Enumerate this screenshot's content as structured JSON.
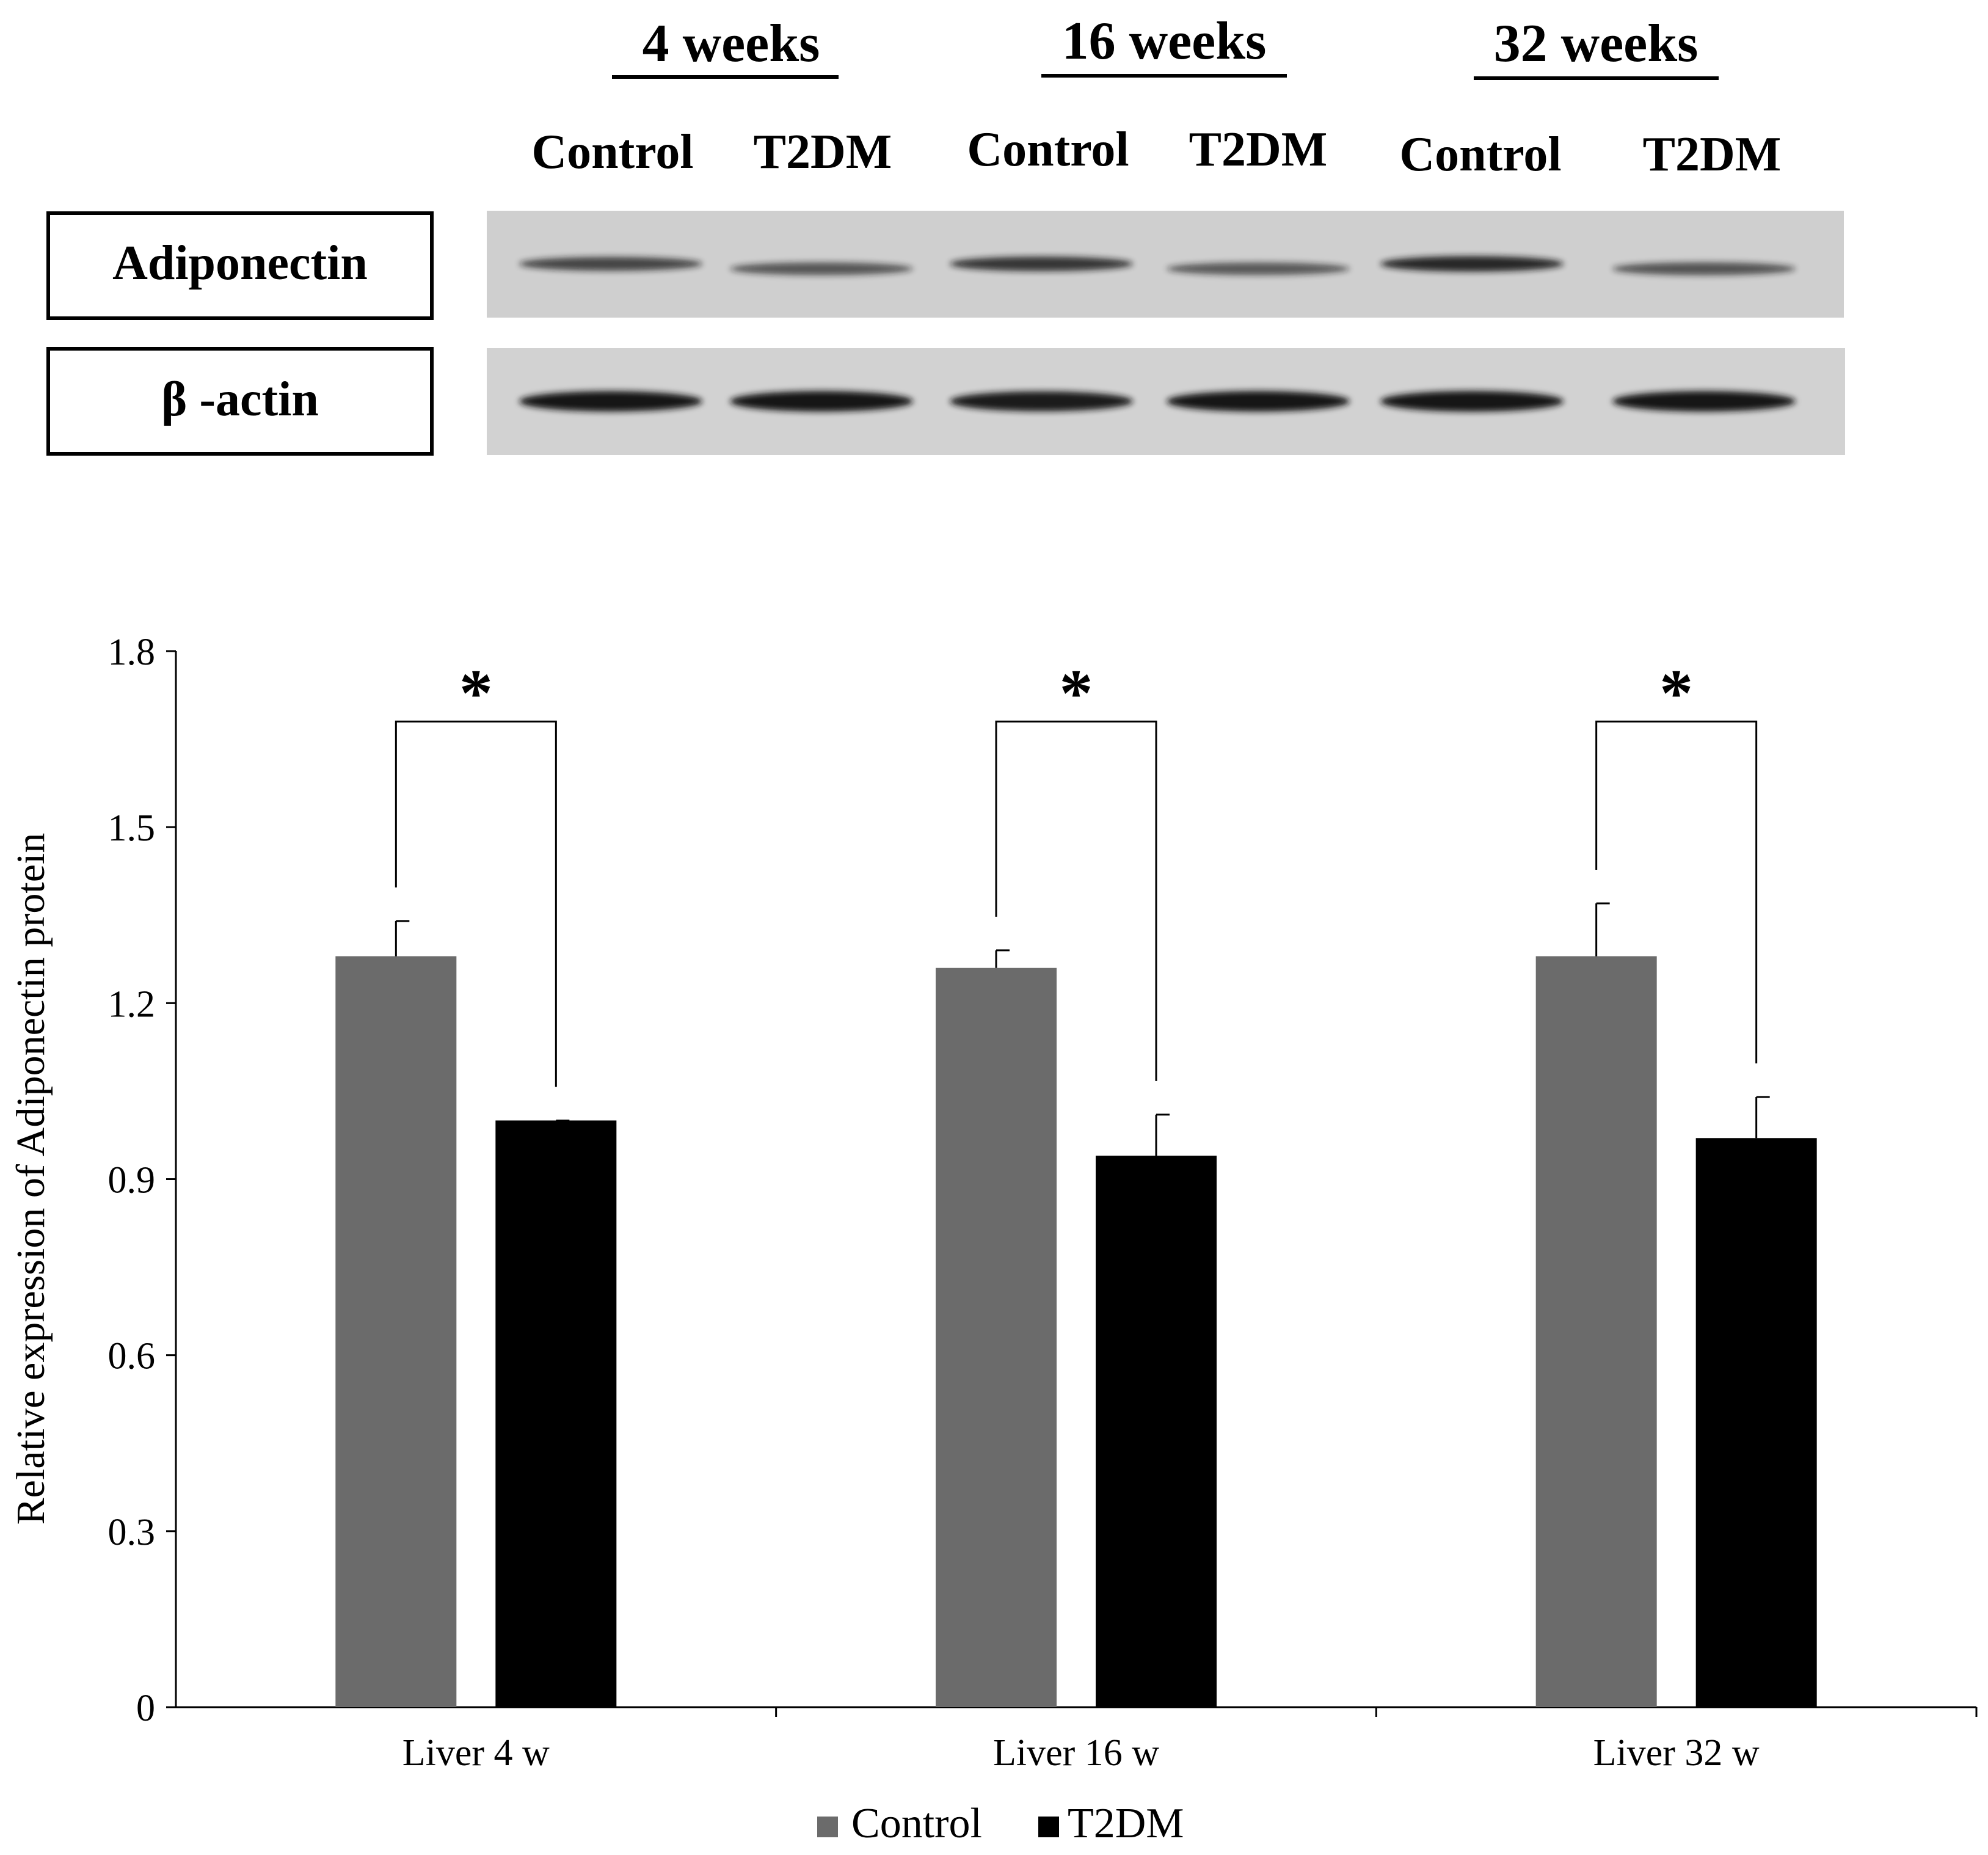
{
  "blot": {
    "timepoints": [
      {
        "label": "4 weeks"
      },
      {
        "label": "16 weeks"
      },
      {
        "label": "32 weeks"
      }
    ],
    "lane_labels": [
      "Control",
      "T2DM",
      "Control",
      "T2DM",
      "Control",
      "T2DM"
    ],
    "rows": [
      {
        "label": "Adiponectin",
        "band_intensity": [
          0.62,
          0.5,
          0.72,
          0.48,
          0.82,
          0.52
        ]
      },
      {
        "label": "β -actin",
        "band_intensity": [
          0.95,
          0.97,
          0.9,
          0.97,
          1.0,
          0.97
        ]
      }
    ],
    "colors": {
      "membrane": "#cfcfcf",
      "band": "#141414"
    }
  },
  "chart_data": {
    "type": "bar",
    "categories": [
      "Liver 4 w",
      "Liver 16 w",
      "Liver 32 w"
    ],
    "series": [
      {
        "name": "Control",
        "values": [
          1.28,
          1.26,
          1.28
        ],
        "errors": [
          0.06,
          0.03,
          0.09
        ],
        "color": "#6b6b6b"
      },
      {
        "name": "T2DM",
        "values": [
          1.0,
          0.94,
          0.97
        ],
        "errors": [
          0.0,
          0.07,
          0.07
        ],
        "color": "#000000"
      }
    ],
    "ylabel": "Relative expression of Adiponectin protein",
    "xlabel": "",
    "ylim": [
      0,
      1.8
    ],
    "yticks": [
      "0",
      "0.3",
      "0.6",
      "0.9",
      "1.2",
      "1.5",
      "1.8"
    ],
    "grid": false,
    "legend_position": "bottom-center",
    "significance": [
      {
        "category": "Liver 4 w",
        "symbol": "*"
      },
      {
        "category": "Liver 16 w",
        "symbol": "*"
      },
      {
        "category": "Liver 32 w",
        "symbol": "*"
      }
    ]
  }
}
